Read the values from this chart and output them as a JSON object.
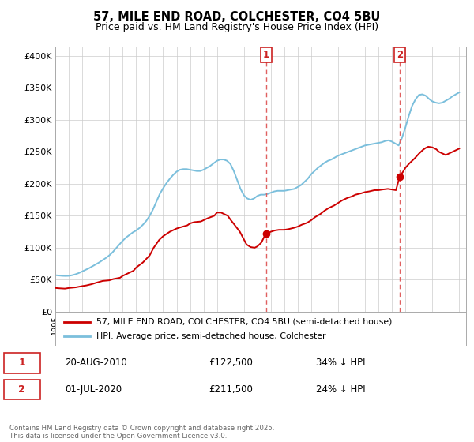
{
  "title_line1": "57, MILE END ROAD, COLCHESTER, CO4 5BU",
  "title_line2": "Price paid vs. HM Land Registry's House Price Index (HPI)",
  "ylabel_ticks": [
    "£0",
    "£50K",
    "£100K",
    "£150K",
    "£200K",
    "£250K",
    "£300K",
    "£350K",
    "£400K"
  ],
  "ytick_values": [
    0,
    50000,
    100000,
    150000,
    200000,
    250000,
    300000,
    350000,
    400000
  ],
  "ylim": [
    0,
    415000
  ],
  "xlim_start": 1995.0,
  "xlim_end": 2025.5,
  "hpi_color": "#7bbfdc",
  "price_color": "#cc0000",
  "vline_color": "#e06060",
  "shade_color": "#ddeeff",
  "marker1_date": 2010.64,
  "marker2_date": 2020.58,
  "marker1_price": 122500,
  "marker2_price": 211500,
  "legend_line1": "57, MILE END ROAD, COLCHESTER, CO4 5BU (semi-detached house)",
  "legend_line2": "HPI: Average price, semi-detached house, Colchester",
  "annotation1_date": "20-AUG-2010",
  "annotation1_price": "£122,500",
  "annotation1_hpi": "34% ↓ HPI",
  "annotation2_date": "01-JUL-2020",
  "annotation2_price": "£211,500",
  "annotation2_hpi": "24% ↓ HPI",
  "footer": "Contains HM Land Registry data © Crown copyright and database right 2025.\nThis data is licensed under the Open Government Licence v3.0.",
  "bg_color": "#ffffff",
  "plot_bg_color": "#ffffff",
  "hpi_data_x": [
    1995.0,
    1995.25,
    1995.5,
    1995.75,
    1996.0,
    1996.25,
    1996.5,
    1996.75,
    1997.0,
    1997.25,
    1997.5,
    1997.75,
    1998.0,
    1998.25,
    1998.5,
    1998.75,
    1999.0,
    1999.25,
    1999.5,
    1999.75,
    2000.0,
    2000.25,
    2000.5,
    2000.75,
    2001.0,
    2001.25,
    2001.5,
    2001.75,
    2002.0,
    2002.25,
    2002.5,
    2002.75,
    2003.0,
    2003.25,
    2003.5,
    2003.75,
    2004.0,
    2004.25,
    2004.5,
    2004.75,
    2005.0,
    2005.25,
    2005.5,
    2005.75,
    2006.0,
    2006.25,
    2006.5,
    2006.75,
    2007.0,
    2007.25,
    2007.5,
    2007.75,
    2008.0,
    2008.25,
    2008.5,
    2008.75,
    2009.0,
    2009.25,
    2009.5,
    2009.75,
    2010.0,
    2010.25,
    2010.5,
    2010.75,
    2011.0,
    2011.25,
    2011.5,
    2011.75,
    2012.0,
    2012.25,
    2012.5,
    2012.75,
    2013.0,
    2013.25,
    2013.5,
    2013.75,
    2014.0,
    2014.25,
    2014.5,
    2014.75,
    2015.0,
    2015.25,
    2015.5,
    2015.75,
    2016.0,
    2016.25,
    2016.5,
    2016.75,
    2017.0,
    2017.25,
    2017.5,
    2017.75,
    2018.0,
    2018.25,
    2018.5,
    2018.75,
    2019.0,
    2019.25,
    2019.5,
    2019.75,
    2020.0,
    2020.25,
    2020.5,
    2020.75,
    2021.0,
    2021.25,
    2021.5,
    2021.75,
    2022.0,
    2022.25,
    2022.5,
    2022.75,
    2023.0,
    2023.25,
    2023.5,
    2023.75,
    2024.0,
    2024.25,
    2024.5,
    2024.75,
    2025.0
  ],
  "hpi_data_y": [
    57000,
    56500,
    56000,
    55800,
    56000,
    57000,
    58500,
    60500,
    63000,
    65500,
    68000,
    71000,
    74000,
    77000,
    80500,
    84000,
    88000,
    93000,
    99000,
    105000,
    111000,
    116000,
    120000,
    124000,
    127000,
    131000,
    136000,
    142000,
    150000,
    160000,
    172000,
    184000,
    193000,
    201000,
    208000,
    214000,
    219000,
    222000,
    223000,
    223000,
    222000,
    221000,
    220000,
    220000,
    222000,
    225000,
    228000,
    232000,
    236000,
    238000,
    238000,
    236000,
    231000,
    220000,
    206000,
    192000,
    182000,
    177000,
    175000,
    177000,
    181000,
    183000,
    183000,
    184000,
    186000,
    188000,
    189000,
    189000,
    189000,
    190000,
    191000,
    192000,
    195000,
    198000,
    203000,
    208000,
    215000,
    220000,
    225000,
    229000,
    233000,
    236000,
    238000,
    241000,
    244000,
    246000,
    248000,
    250000,
    252000,
    254000,
    256000,
    258000,
    260000,
    261000,
    262000,
    263000,
    264000,
    265000,
    267000,
    268000,
    266000,
    263000,
    260000,
    272000,
    288000,
    306000,
    322000,
    332000,
    339000,
    340000,
    338000,
    333000,
    329000,
    327000,
    326000,
    327000,
    330000,
    333000,
    337000,
    340000,
    343000
  ],
  "price_data_x": [
    1995.0,
    1995.3,
    1995.7,
    1996.0,
    1996.5,
    1997.0,
    1997.3,
    1997.7,
    1998.0,
    1998.5,
    1999.0,
    1999.3,
    1999.8,
    2000.0,
    2000.3,
    2000.8,
    2001.0,
    2001.5,
    2002.0,
    2002.3,
    2002.7,
    2003.0,
    2003.5,
    2004.0,
    2004.3,
    2004.8,
    2005.0,
    2005.3,
    2005.8,
    2006.0,
    2006.3,
    2006.8,
    2007.0,
    2007.3,
    2007.5,
    2007.8,
    2008.0,
    2008.3,
    2008.7,
    2009.0,
    2009.2,
    2009.5,
    2009.8,
    2010.0,
    2010.3,
    2010.64,
    2010.9,
    2011.0,
    2011.3,
    2011.6,
    2012.0,
    2012.3,
    2012.7,
    2013.0,
    2013.3,
    2013.7,
    2014.0,
    2014.3,
    2014.7,
    2015.0,
    2015.3,
    2015.7,
    2016.0,
    2016.3,
    2016.7,
    2017.0,
    2017.3,
    2017.7,
    2018.0,
    2018.3,
    2018.7,
    2019.0,
    2019.3,
    2019.7,
    2020.0,
    2020.3,
    2020.58,
    2020.8,
    2021.0,
    2021.3,
    2021.7,
    2022.0,
    2022.3,
    2022.5,
    2022.7,
    2023.0,
    2023.3,
    2023.5,
    2023.8,
    2024.0,
    2024.3,
    2024.7,
    2025.0
  ],
  "price_data_y": [
    37000,
    36500,
    36000,
    37000,
    38000,
    40000,
    41000,
    43000,
    45000,
    48000,
    49000,
    51000,
    53000,
    56000,
    59000,
    64000,
    69000,
    77000,
    88000,
    100000,
    112000,
    118000,
    125000,
    130000,
    132000,
    135000,
    138000,
    140000,
    141000,
    143000,
    146000,
    150000,
    155000,
    155000,
    153000,
    150000,
    144000,
    136000,
    125000,
    113000,
    105000,
    101000,
    100000,
    102000,
    108000,
    122500,
    124000,
    125000,
    127000,
    128000,
    128000,
    129000,
    131000,
    133000,
    136000,
    139000,
    143000,
    148000,
    153000,
    158000,
    162000,
    166000,
    170000,
    174000,
    178000,
    180000,
    183000,
    185000,
    187000,
    188000,
    190000,
    190000,
    191000,
    192000,
    191000,
    190000,
    211500,
    218000,
    225000,
    232000,
    240000,
    247000,
    253000,
    256000,
    258000,
    257000,
    254000,
    250000,
    247000,
    245000,
    248000,
    252000,
    255000
  ]
}
